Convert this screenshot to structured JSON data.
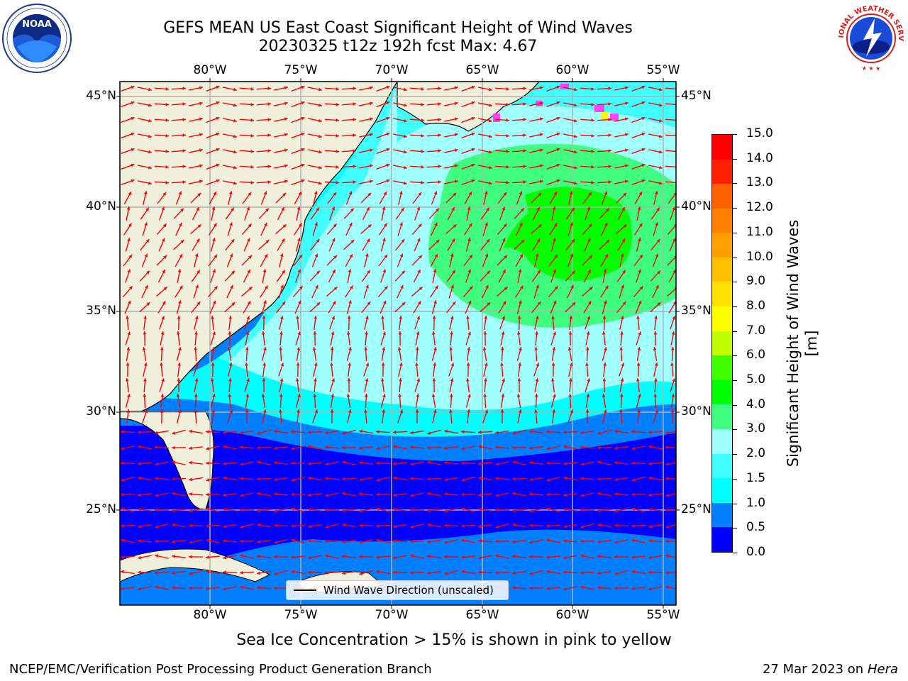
{
  "title_line1": "GEFS MEAN US East Coast Significant Height of Wind Waves",
  "title_line2": "20230325 t12z 192h fcst   Max: 4.67",
  "longitudes": [
    "80°W",
    "75°W",
    "70°W",
    "65°W",
    "60°W",
    "55°W"
  ],
  "latitudes": [
    "45°N",
    "40°N",
    "35°N",
    "30°N",
    "25°N"
  ],
  "colorbar": {
    "label": "Significant Height of Wind Waves [m]",
    "ticks": [
      "0.0",
      "0.5",
      "1.0",
      "1.5",
      "2.0",
      "3.0",
      "4.0",
      "5.0",
      "6.0",
      "7.0",
      "8.0",
      "9.0",
      "10.0",
      "11.0",
      "12.0",
      "13.0",
      "14.0",
      "15.0"
    ],
    "colors": [
      "#0000ff",
      "#0080ff",
      "#00ffff",
      "#40ffff",
      "#a0ffff",
      "#40ff80",
      "#00ff00",
      "#40ff00",
      "#c0ff00",
      "#ffff00",
      "#ffe000",
      "#ffc000",
      "#ffa000",
      "#ff8000",
      "#ff6000",
      "#ff2000",
      "#ff0000"
    ]
  },
  "legend_label": "Wind Wave Direction (unscaled)",
  "sea_ice_note": "Sea Ice Concentration > 15% is shown in pink to yellow",
  "footer_left": "NCEP/EMC/Verification Post Processing Product Generation Branch",
  "footer_date": "27 Mar 2023 on",
  "footer_host": "Hera",
  "logos": {
    "left": "NOAA",
    "right": "NATIONAL WEATHER SERVICE"
  },
  "colors": {
    "land": "#efefdc",
    "arrow": "#ff0000",
    "ice_pink": "#ff40ff",
    "ice_yellow": "#ffff00"
  }
}
